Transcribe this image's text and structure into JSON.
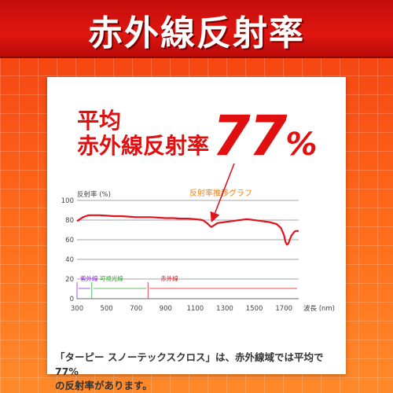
{
  "header": {
    "title": "赤外線反射率"
  },
  "headline": {
    "line1": "平均",
    "line2": "赤外線反射率",
    "value": "77",
    "unit": "%"
  },
  "caption": {
    "line1": "「ターピー スノーテックスクロス」は、赤外線域では平均で77%",
    "line2": "の反射率があります。"
  },
  "colors": {
    "accent": "#e01010",
    "series": "#e0141e",
    "uv": "#8a2be2",
    "visible": "#33aa33",
    "ir": "#e0141e",
    "annotation": "#f08010"
  },
  "chart_data": {
    "type": "line",
    "title": "反射率推移グラフ",
    "ylabel": "反射率 (%)",
    "xlabel": "波長 (nm)",
    "xlim": [
      300,
      1800
    ],
    "ylim": [
      0,
      100
    ],
    "xticks": [
      300,
      500,
      700,
      900,
      1100,
      1300,
      1500,
      1700
    ],
    "yticks": [
      0,
      20,
      40,
      60,
      80,
      100
    ],
    "grid": "horizontal",
    "regions": [
      {
        "label": "紫外線",
        "from": 300,
        "to": 400
      },
      {
        "label": "可視光線",
        "from": 400,
        "to": 780
      },
      {
        "label": "赤外線",
        "from": 780,
        "to": 1800
      }
    ],
    "series": [
      {
        "x": [
          300,
          320,
          340,
          360,
          380,
          400,
          450,
          500,
          550,
          600,
          650,
          700,
          750,
          800,
          850,
          900,
          950,
          1000,
          1050,
          1100,
          1150,
          1180,
          1200,
          1210,
          1220,
          1250,
          1300,
          1350,
          1400,
          1450,
          1500,
          1550,
          1600,
          1650,
          1680,
          1700,
          1710,
          1720,
          1730,
          1740,
          1750,
          1760,
          1770,
          1780,
          1800
        ],
        "y": [
          79,
          81,
          83,
          84,
          85,
          85,
          85,
          84.5,
          84,
          84,
          83.5,
          83,
          83,
          83,
          82.5,
          82,
          82,
          81.5,
          81.5,
          81,
          80,
          77,
          74,
          73,
          74,
          77,
          78,
          79,
          80,
          81,
          80,
          79,
          78,
          76,
          72,
          65,
          58,
          55,
          56,
          60,
          64,
          66,
          68,
          69,
          69
        ]
      }
    ],
    "annotation": "77%"
  }
}
